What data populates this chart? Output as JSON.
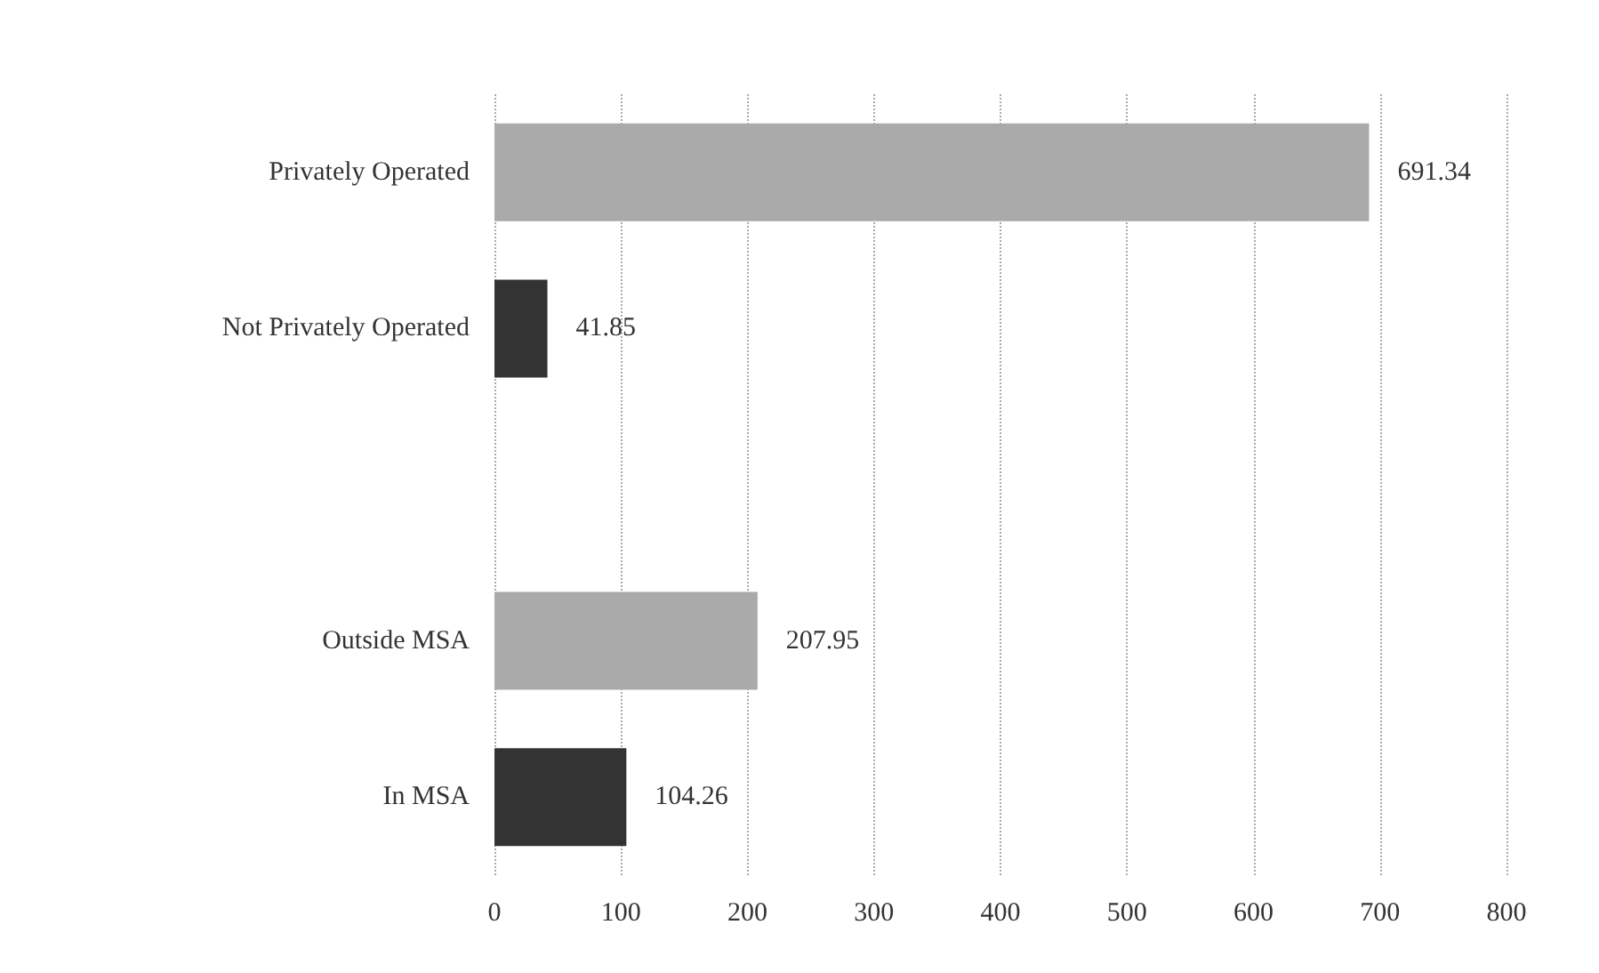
{
  "chart_data": {
    "type": "bar",
    "orientation": "horizontal",
    "categories": [
      "Privately Operated",
      "Not Privately Operated",
      null,
      "Outside MSA",
      "In MSA"
    ],
    "values": [
      691.34,
      41.85,
      null,
      207.95,
      104.26
    ],
    "colors": [
      "#aaaaaa",
      "#333333",
      "#ffffff",
      "#aaaaaa",
      "#333333"
    ],
    "xlim": [
      0,
      800
    ],
    "xticks": [
      0,
      100,
      200,
      300,
      400,
      500,
      600,
      700,
      800
    ],
    "grid": "x",
    "data_labels": true
  }
}
